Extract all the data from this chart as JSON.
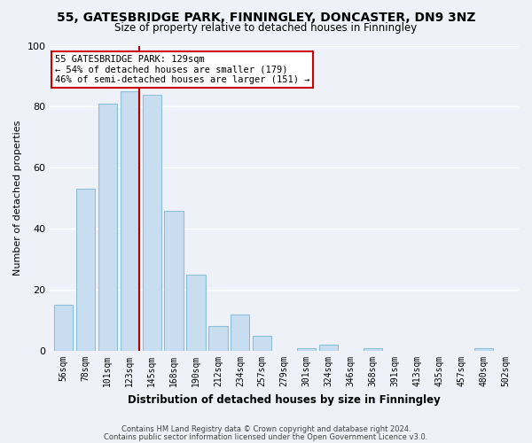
{
  "title": "55, GATESBRIDGE PARK, FINNINGLEY, DONCASTER, DN9 3NZ",
  "subtitle": "Size of property relative to detached houses in Finningley",
  "xlabel": "Distribution of detached houses by size in Finningley",
  "ylabel": "Number of detached properties",
  "bar_labels": [
    "56sqm",
    "78sqm",
    "101sqm",
    "123sqm",
    "145sqm",
    "168sqm",
    "190sqm",
    "212sqm",
    "234sqm",
    "257sqm",
    "279sqm",
    "301sqm",
    "324sqm",
    "346sqm",
    "368sqm",
    "391sqm",
    "413sqm",
    "435sqm",
    "457sqm",
    "480sqm",
    "502sqm"
  ],
  "bar_values": [
    15,
    53,
    81,
    85,
    84,
    46,
    25,
    8,
    12,
    5,
    0,
    1,
    2,
    0,
    1,
    0,
    0,
    0,
    0,
    1,
    0
  ],
  "bar_color": "#c8ddf0",
  "bar_edge_color": "#8bbfda",
  "highlight_bar_index": 3,
  "vline_color": "#aa0000",
  "vline_bar_index": 3,
  "annotation_lines": [
    "55 GATESBRIDGE PARK: 129sqm",
    "← 54% of detached houses are smaller (179)",
    "46% of semi-detached houses are larger (151) →"
  ],
  "annotation_box_edge": "#cc0000",
  "ylim": [
    0,
    100
  ],
  "yticks": [
    0,
    20,
    40,
    60,
    80,
    100
  ],
  "footnote1": "Contains HM Land Registry data © Crown copyright and database right 2024.",
  "footnote2": "Contains public sector information licensed under the Open Government Licence v3.0.",
  "bg_color": "#eef2f8",
  "plot_bg_color": "#eef2f8",
  "grid_color": "#ffffff",
  "title_fontsize": 10,
  "subtitle_fontsize": 8.5,
  "ylabel_fontsize": 8,
  "xlabel_fontsize": 8.5,
  "tick_fontsize": 7,
  "annot_fontsize": 7.5
}
